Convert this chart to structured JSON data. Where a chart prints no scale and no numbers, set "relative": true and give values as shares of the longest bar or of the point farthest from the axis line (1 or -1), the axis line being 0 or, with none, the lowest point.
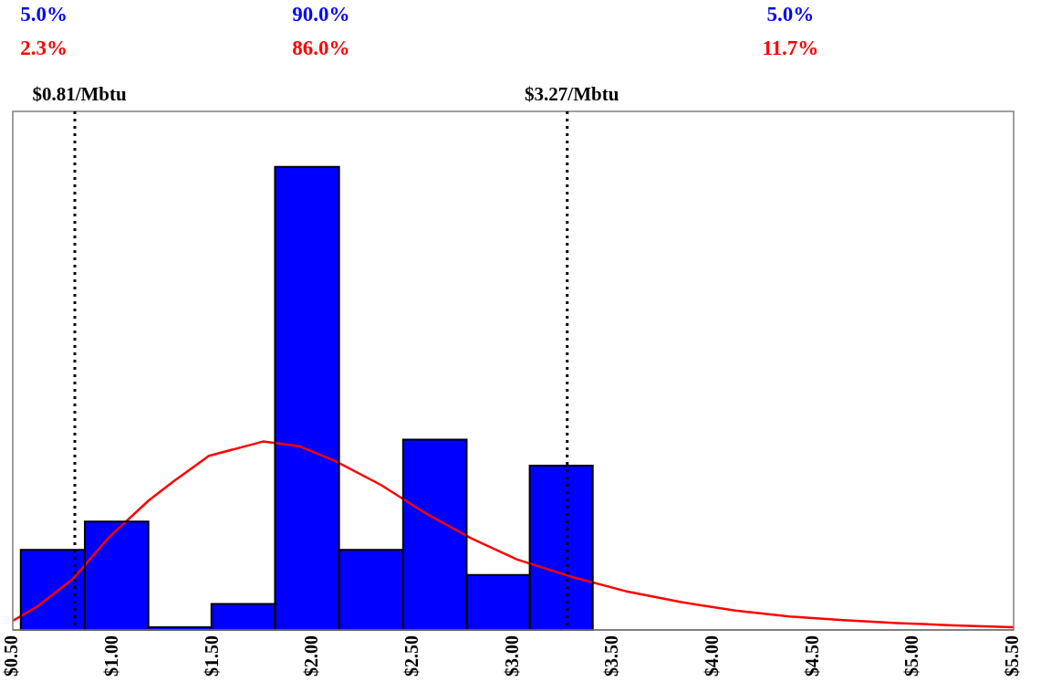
{
  "chart_data": {
    "type": "histogram",
    "relative": true,
    "grid": false,
    "legend": false,
    "xlim": [
      0.5,
      5.5
    ],
    "xticks": [
      {
        "value": 0.5,
        "label": "$0.50"
      },
      {
        "value": 1.0,
        "label": "$1.00"
      },
      {
        "value": 1.5,
        "label": "$1.50"
      },
      {
        "value": 2.0,
        "label": "$2.00"
      },
      {
        "value": 2.5,
        "label": "$2.50"
      },
      {
        "value": 3.0,
        "label": "$3.00"
      },
      {
        "value": 3.5,
        "label": "$3.50"
      },
      {
        "value": 4.0,
        "label": "$4.00"
      },
      {
        "value": 4.5,
        "label": "$4.50"
      },
      {
        "value": 5.0,
        "label": "$5.00"
      },
      {
        "value": 5.5,
        "label": "$5.50"
      }
    ],
    "series": [
      {
        "color": "#0000ff",
        "bins": [
          0.54,
          0.86,
          1.18,
          1.49,
          1.81,
          2.13,
          2.45,
          2.77,
          3.08,
          3.4
        ],
        "values": [
          0.173,
          0.234,
          0.006,
          0.056,
          1,
          0.173,
          0.411,
          0.119,
          0.355
        ]
      },
      {
        "type": "line",
        "color": "#ff0000",
        "marker": "none",
        "x": [
          0.5,
          0.62,
          0.8,
          0.98,
          1.18,
          1.3,
          1.48,
          1.75,
          1.93,
          2.11,
          2.34,
          2.57,
          2.79,
          3.02,
          3.29,
          3.56,
          3.84,
          4.11,
          4.38,
          4.65,
          4.92,
          5.2,
          5.5
        ],
        "values": [
          0.02,
          0.05,
          0.11,
          0.2,
          0.28,
          0.32,
          0.376,
          0.407,
          0.397,
          0.365,
          0.313,
          0.25,
          0.198,
          0.152,
          0.115,
          0.084,
          0.06,
          0.042,
          0.029,
          0.021,
          0.015,
          0.01,
          0.006
        ]
      }
    ],
    "ref_lines": [
      {
        "axis": "x",
        "value": 0.81,
        "label": "$0.81/Mbtu",
        "line_style": "dotted",
        "color": "#000000"
      },
      {
        "axis": "x",
        "value": 3.27,
        "label": "$3.27/Mbtu",
        "line_style": "dotted",
        "color": "#000000"
      }
    ],
    "annotations": [
      "5.0%",
      "90.0%",
      "5.0%",
      "2.3%",
      "86.0%",
      "11.7%"
    ]
  }
}
